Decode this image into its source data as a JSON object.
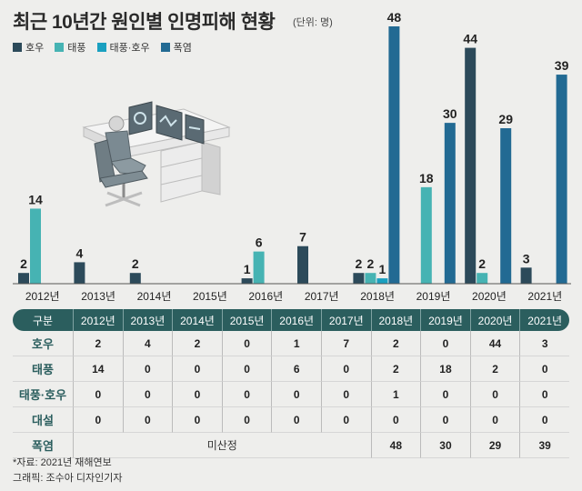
{
  "title": "최근 10년간 원인별 인명피해 현황",
  "unit": "(단위: 명)",
  "colors": {
    "호우": "#2c4a5a",
    "태풍": "#46b3b3",
    "태풍·호우": "#1aa0c0",
    "폭염": "#226a93"
  },
  "chart_data": {
    "type": "bar",
    "title": "최근 10년간 원인별 인명피해 현황",
    "ylabel": "",
    "xlabel": "",
    "ylim": [
      0,
      48
    ],
    "legend_position": "top-left",
    "categories": [
      "2012년",
      "2013년",
      "2014년",
      "2015년",
      "2016년",
      "2017년",
      "2018년",
      "2019년",
      "2020년",
      "2021년"
    ],
    "series": [
      {
        "name": "호우",
        "values": [
          2,
          4,
          2,
          0,
          1,
          7,
          2,
          0,
          44,
          3
        ]
      },
      {
        "name": "태풍",
        "values": [
          14,
          0,
          0,
          0,
          6,
          0,
          2,
          18,
          2,
          0
        ]
      },
      {
        "name": "태풍·호우",
        "values": [
          0,
          0,
          0,
          0,
          0,
          0,
          1,
          0,
          0,
          0
        ]
      },
      {
        "name": "폭염",
        "values": [
          null,
          null,
          null,
          null,
          null,
          null,
          48,
          30,
          29,
          39
        ]
      }
    ]
  },
  "table": {
    "header": "구분",
    "columns": [
      "2012년",
      "2013년",
      "2014년",
      "2015년",
      "2016년",
      "2017년",
      "2018년",
      "2019년",
      "2020년",
      "2021년"
    ],
    "rows": [
      {
        "label": "호우",
        "cells": [
          "2",
          "4",
          "2",
          "0",
          "1",
          "7",
          "2",
          "0",
          "44",
          "3"
        ]
      },
      {
        "label": "태풍",
        "cells": [
          "14",
          "0",
          "0",
          "0",
          "6",
          "0",
          "2",
          "18",
          "2",
          "0"
        ]
      },
      {
        "label": "태풍·호우",
        "cells": [
          "0",
          "0",
          "0",
          "0",
          "0",
          "0",
          "1",
          "0",
          "0",
          "0"
        ]
      },
      {
        "label": "대설",
        "cells": [
          "0",
          "0",
          "0",
          "0",
          "0",
          "0",
          "0",
          "0",
          "0",
          "0"
        ]
      }
    ],
    "heat_row": {
      "label": "폭염",
      "na_text": "미산정",
      "cells": [
        "48",
        "30",
        "29",
        "39"
      ]
    }
  },
  "footnote": {
    "source": "*자료: 2021년 재해연보",
    "credit": "그래픽: 조수아 디자인기자"
  }
}
